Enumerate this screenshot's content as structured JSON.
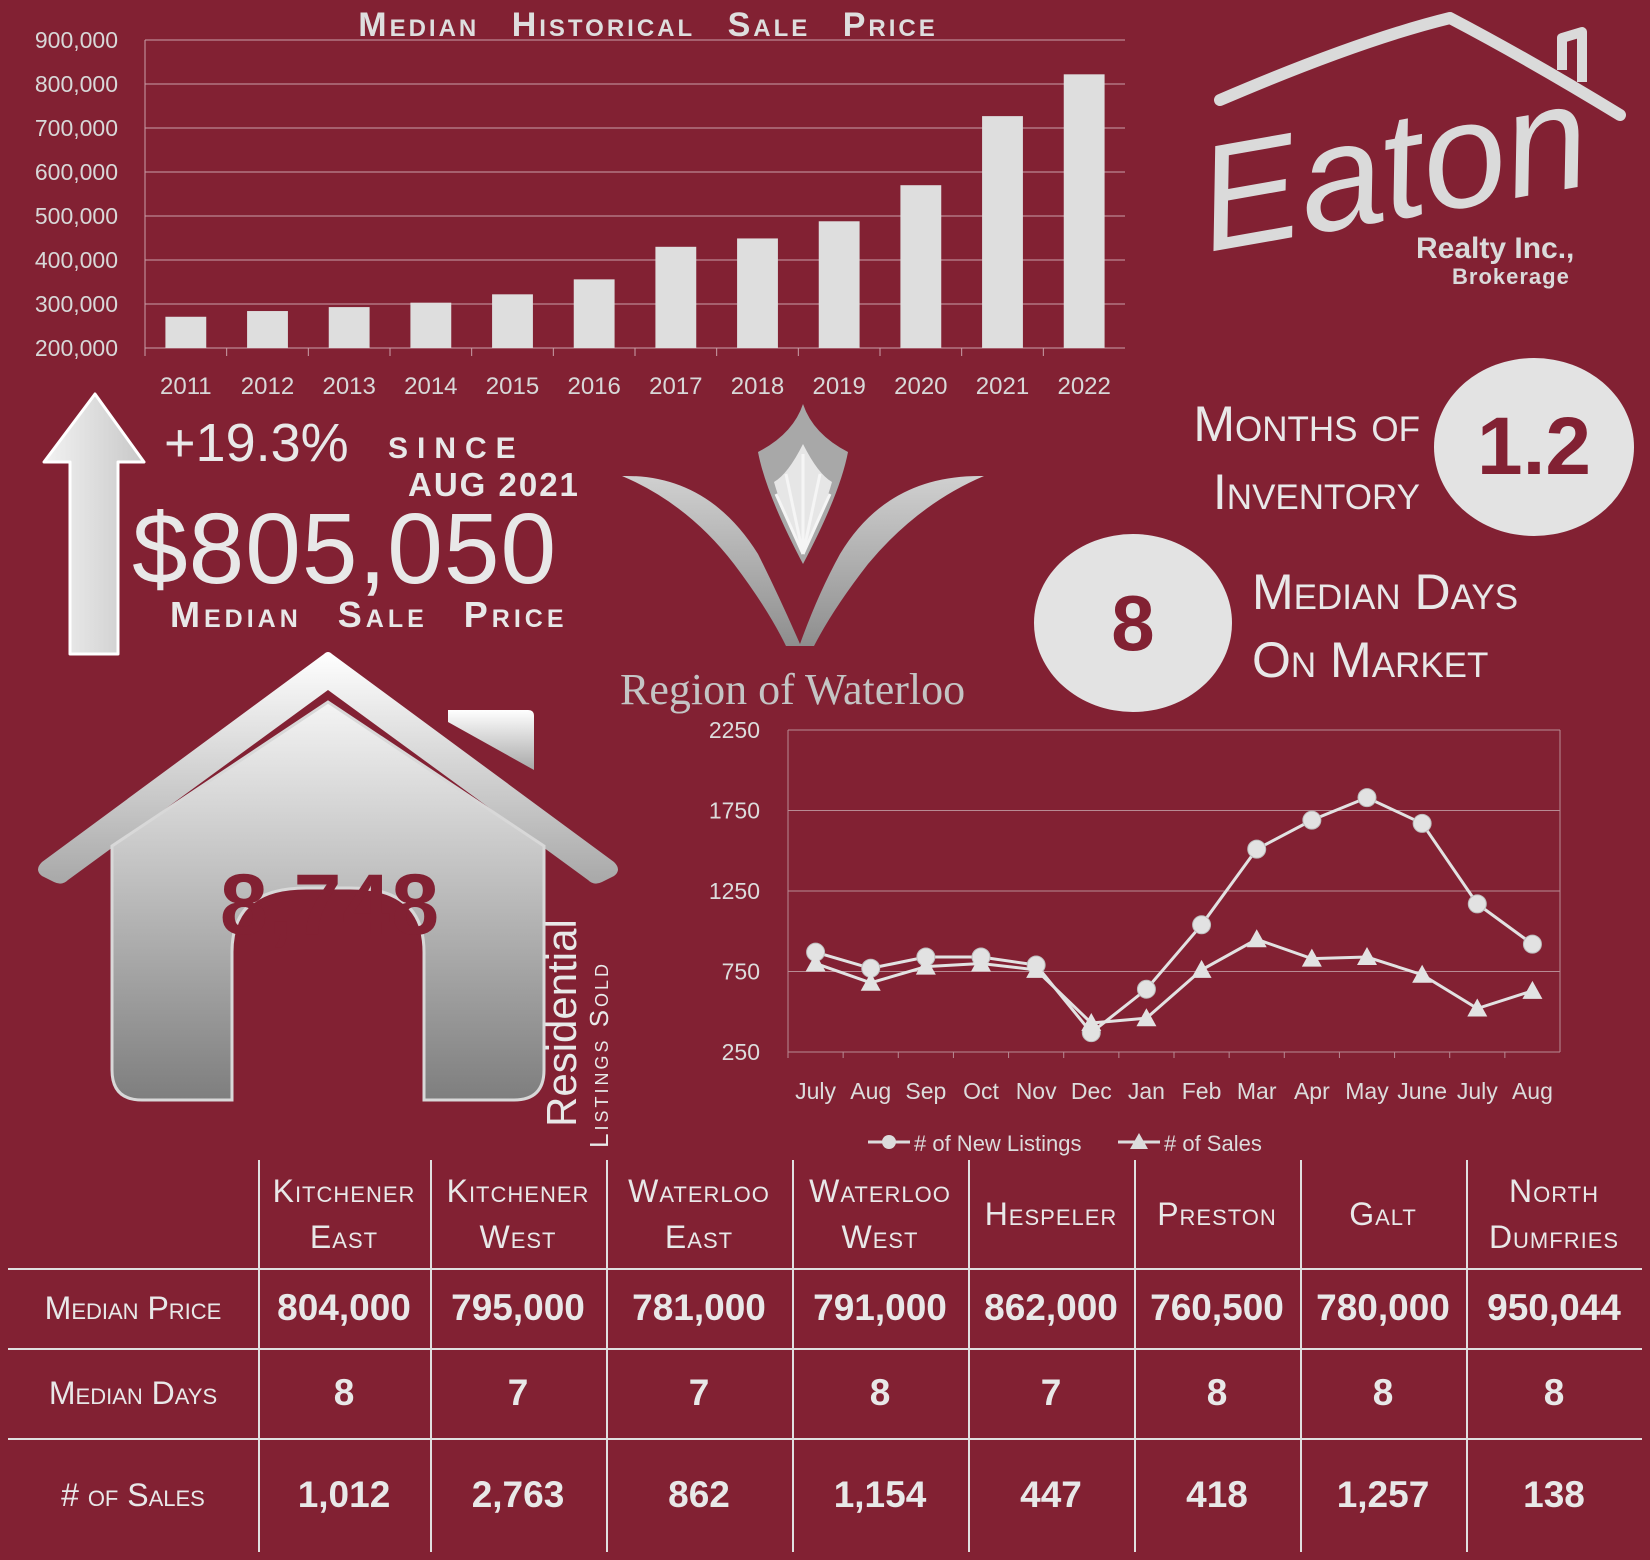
{
  "colors": {
    "background": "#822133",
    "foreground": "#e3e3e3",
    "accent": "#822133"
  },
  "chart_data": [
    {
      "type": "bar",
      "title": "Median Historical Sale Price",
      "categories": [
        "2011",
        "2012",
        "2013",
        "2014",
        "2015",
        "2016",
        "2017",
        "2018",
        "2019",
        "2020",
        "2021",
        "2022"
      ],
      "values": [
        271000,
        284000,
        293000,
        303000,
        322000,
        356000,
        430000,
        449000,
        488000,
        570000,
        727000,
        822000
      ],
      "ylim": [
        200000,
        900000
      ],
      "y_ticks": [
        "200,000",
        "300,000",
        "400,000",
        "500,000",
        "600,000",
        "700,000",
        "800,000",
        "900,000"
      ],
      "grid": true
    },
    {
      "type": "line",
      "categories": [
        "July",
        "Aug",
        "Sep",
        "Oct",
        "Nov",
        "Dec",
        "Jan",
        "Feb",
        "Mar",
        "Apr",
        "May",
        "June",
        "July",
        "Aug"
      ],
      "series": [
        {
          "name": "# of New Listings",
          "marker": "circle",
          "values": [
            870,
            770,
            840,
            840,
            790,
            370,
            640,
            1040,
            1510,
            1690,
            1830,
            1670,
            1170,
            920
          ]
        },
        {
          "name": "# of Sales",
          "marker": "triangle",
          "values": [
            800,
            680,
            780,
            800,
            760,
            430,
            460,
            760,
            950,
            830,
            840,
            730,
            520,
            630
          ]
        }
      ],
      "ylim": [
        250,
        2250
      ],
      "y_ticks": [
        "250",
        "750",
        "1250",
        "1750",
        "2250"
      ],
      "legend": "bottom",
      "grid": true
    }
  ],
  "logo": {
    "brand": "Eaton",
    "company": "Realty Inc.,",
    "sub": "Brokerage"
  },
  "inventory": {
    "label_line1": "Months of",
    "label_line2": "Inventory",
    "value": "1.2"
  },
  "days_on_market": {
    "value": "8",
    "label_line1": "Median Days",
    "label_line2": "On Market"
  },
  "price": {
    "change": "+19.3%",
    "since": "SINCE",
    "period": "AUG 2021",
    "median": "$805,050",
    "label": "Median Sale Price"
  },
  "region": {
    "name": "Region of Waterloo"
  },
  "listings": {
    "count": "8,748",
    "label_main": "Residential",
    "label_sub": "Listings Sold"
  },
  "table": {
    "columns": [
      {
        "line1": "Kitchener",
        "line2": "East"
      },
      {
        "line1": "Kitchener",
        "line2": "West"
      },
      {
        "line1": "Waterloo",
        "line2": "East"
      },
      {
        "line1": "Waterloo",
        "line2": "West"
      },
      {
        "line1": "Hespeler",
        "line2": ""
      },
      {
        "line1": "Preston",
        "line2": ""
      },
      {
        "line1": "Galt",
        "line2": ""
      },
      {
        "line1": "North",
        "line2": "Dumfries"
      }
    ],
    "rows": [
      {
        "label": "Median Price",
        "values": [
          "804,000",
          "795,000",
          "781,000",
          "791,000",
          "862,000",
          "760,500",
          "780,000",
          "950,044"
        ]
      },
      {
        "label": "Median Days",
        "values": [
          "8",
          "7",
          "7",
          "8",
          "7",
          "8",
          "8",
          "8"
        ]
      },
      {
        "label": "# of Sales",
        "values": [
          "1,012",
          "2,763",
          "862",
          "1,154",
          "447",
          "418",
          "1,257",
          "138"
        ]
      }
    ]
  }
}
